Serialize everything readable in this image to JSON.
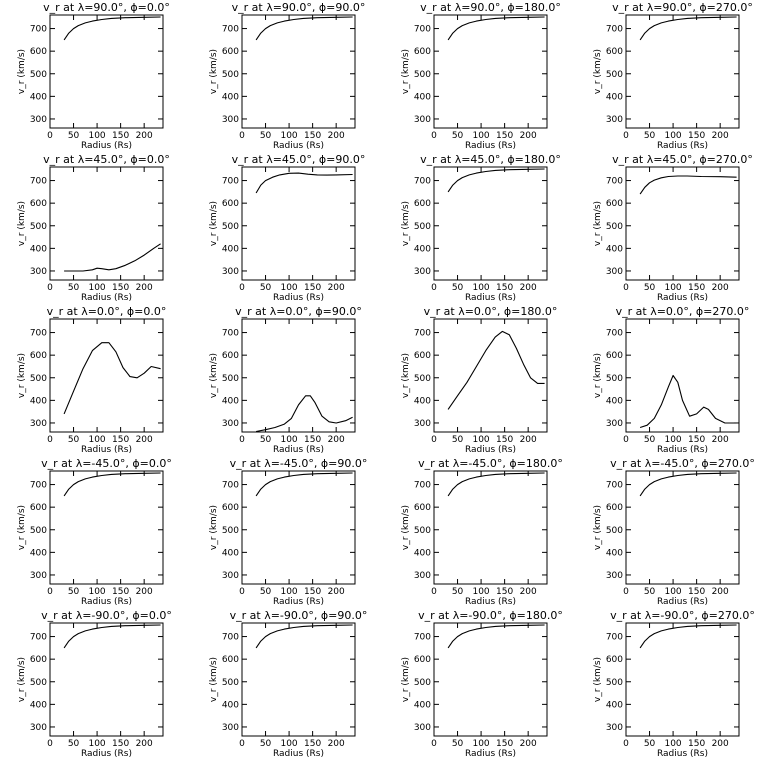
{
  "chart_data": {
    "type": "line",
    "layout": {
      "rows": 5,
      "cols": 4
    },
    "xlabel": "Radius (Rs)",
    "ylabel": "v_r (km/s)",
    "xlim": [
      0,
      240
    ],
    "ylim": [
      260,
      760
    ],
    "xticks": [
      0,
      50,
      100,
      150,
      200
    ],
    "yticks": [
      300,
      400,
      500,
      600,
      700
    ],
    "panels": [
      {
        "title": "v_r at λ=90.0°, ϕ=0.0°",
        "x": [
          30,
          40,
          50,
          60,
          75,
          90,
          110,
          130,
          160,
          200,
          235
        ],
        "y": [
          650,
          680,
          700,
          713,
          725,
          733,
          740,
          745,
          748,
          750,
          751
        ]
      },
      {
        "title": "v_r at λ=90.0°, ϕ=90.0°",
        "x": [
          30,
          40,
          50,
          60,
          75,
          90,
          110,
          130,
          160,
          200,
          235
        ],
        "y": [
          650,
          680,
          700,
          713,
          725,
          733,
          740,
          745,
          748,
          750,
          751
        ]
      },
      {
        "title": "v_r at λ=90.0°, ϕ=180.0°",
        "x": [
          30,
          40,
          50,
          60,
          75,
          90,
          110,
          130,
          160,
          200,
          235
        ],
        "y": [
          650,
          680,
          700,
          713,
          725,
          733,
          740,
          745,
          748,
          750,
          751
        ]
      },
      {
        "title": "v_r at λ=90.0°, ϕ=270.0°",
        "x": [
          30,
          40,
          50,
          60,
          75,
          90,
          110,
          130,
          160,
          200,
          235
        ],
        "y": [
          650,
          680,
          700,
          713,
          725,
          733,
          740,
          745,
          748,
          750,
          751
        ]
      },
      {
        "title": "v_r at λ=45.0°, ϕ=0.0°",
        "x": [
          30,
          50,
          70,
          90,
          100,
          110,
          125,
          140,
          160,
          180,
          200,
          220,
          235
        ],
        "y": [
          300,
          300,
          300,
          305,
          312,
          310,
          305,
          310,
          325,
          345,
          370,
          400,
          420
        ]
      },
      {
        "title": "v_r at λ=45.0°, ϕ=90.0°",
        "x": [
          30,
          40,
          50,
          65,
          80,
          100,
          120,
          140,
          160,
          180,
          200,
          235
        ],
        "y": [
          645,
          680,
          700,
          715,
          725,
          732,
          733,
          728,
          725,
          724,
          725,
          727
        ]
      },
      {
        "title": "v_r at λ=45.0°, ϕ=180.0°",
        "x": [
          30,
          40,
          50,
          60,
          75,
          90,
          110,
          130,
          160,
          200,
          235
        ],
        "y": [
          650,
          680,
          700,
          713,
          725,
          733,
          740,
          745,
          748,
          750,
          751
        ]
      },
      {
        "title": "v_r at λ=45.0°, ϕ=270.0°",
        "x": [
          30,
          40,
          50,
          60,
          75,
          90,
          110,
          130,
          160,
          200,
          235
        ],
        "y": [
          640,
          670,
          690,
          702,
          712,
          718,
          720,
          720,
          718,
          717,
          715
        ]
      },
      {
        "title": "v_r at λ=0.0°, ϕ=0.0°",
        "x": [
          30,
          50,
          70,
          90,
          110,
          125,
          140,
          155,
          170,
          185,
          200,
          215,
          235
        ],
        "y": [
          340,
          440,
          540,
          620,
          655,
          655,
          615,
          545,
          505,
          500,
          520,
          550,
          540
        ]
      },
      {
        "title": "v_r at λ=0.0°, ϕ=90.0°",
        "x": [
          30,
          50,
          70,
          90,
          105,
          120,
          135,
          145,
          155,
          170,
          185,
          200,
          220,
          235
        ],
        "y": [
          262,
          270,
          280,
          295,
          320,
          380,
          420,
          420,
          390,
          330,
          305,
          300,
          310,
          325
        ]
      },
      {
        "title": "v_r at λ=0.0°, ϕ=180.0°",
        "x": [
          30,
          50,
          70,
          90,
          110,
          130,
          145,
          160,
          175,
          190,
          205,
          220,
          235
        ],
        "y": [
          360,
          420,
          480,
          550,
          620,
          680,
          705,
          690,
          630,
          560,
          500,
          475,
          475
        ]
      },
      {
        "title": "v_r at λ=0.0°, ϕ=270.0°",
        "x": [
          30,
          45,
          60,
          75,
          90,
          100,
          110,
          120,
          135,
          150,
          165,
          175,
          190,
          210,
          235
        ],
        "y": [
          280,
          290,
          320,
          380,
          460,
          510,
          480,
          400,
          330,
          340,
          370,
          360,
          320,
          300,
          300
        ]
      },
      {
        "title": "v_r at λ=-45.0°, ϕ=0.0°",
        "x": [
          30,
          40,
          50,
          60,
          75,
          90,
          110,
          130,
          160,
          200,
          235
        ],
        "y": [
          650,
          680,
          700,
          713,
          725,
          733,
          740,
          745,
          748,
          750,
          751
        ]
      },
      {
        "title": "v_r at λ=-45.0°, ϕ=90.0°",
        "x": [
          30,
          40,
          50,
          60,
          75,
          90,
          110,
          130,
          160,
          200,
          235
        ],
        "y": [
          650,
          680,
          700,
          713,
          725,
          733,
          740,
          745,
          748,
          750,
          751
        ]
      },
      {
        "title": "v_r at λ=-45.0°, ϕ=180.0°",
        "x": [
          30,
          40,
          50,
          60,
          75,
          90,
          110,
          130,
          160,
          200,
          235
        ],
        "y": [
          650,
          680,
          700,
          713,
          725,
          733,
          740,
          745,
          748,
          750,
          751
        ]
      },
      {
        "title": "v_r at λ=-45.0°, ϕ=270.0°",
        "x": [
          30,
          40,
          50,
          60,
          75,
          90,
          110,
          130,
          160,
          200,
          235
        ],
        "y": [
          650,
          680,
          700,
          713,
          725,
          733,
          740,
          745,
          748,
          750,
          751
        ]
      },
      {
        "title": "v_r at λ=-90.0°, ϕ=0.0°",
        "x": [
          30,
          40,
          50,
          60,
          75,
          90,
          110,
          130,
          160,
          200,
          235
        ],
        "y": [
          650,
          680,
          700,
          713,
          725,
          733,
          740,
          745,
          748,
          750,
          751
        ]
      },
      {
        "title": "v_r at λ=-90.0°, ϕ=90.0°",
        "x": [
          30,
          40,
          50,
          60,
          75,
          90,
          110,
          130,
          160,
          200,
          235
        ],
        "y": [
          650,
          680,
          700,
          713,
          725,
          733,
          740,
          745,
          748,
          750,
          751
        ]
      },
      {
        "title": "v_r at λ=-90.0°, ϕ=180.0°",
        "x": [
          30,
          40,
          50,
          60,
          75,
          90,
          110,
          130,
          160,
          200,
          235
        ],
        "y": [
          650,
          680,
          700,
          713,
          725,
          733,
          740,
          745,
          748,
          750,
          751
        ]
      },
      {
        "title": "v_r at λ=-90.0°, ϕ=270.0°",
        "x": [
          30,
          40,
          50,
          60,
          75,
          90,
          110,
          130,
          160,
          200,
          235
        ],
        "y": [
          650,
          680,
          700,
          713,
          725,
          733,
          740,
          745,
          748,
          750,
          751
        ]
      }
    ]
  }
}
